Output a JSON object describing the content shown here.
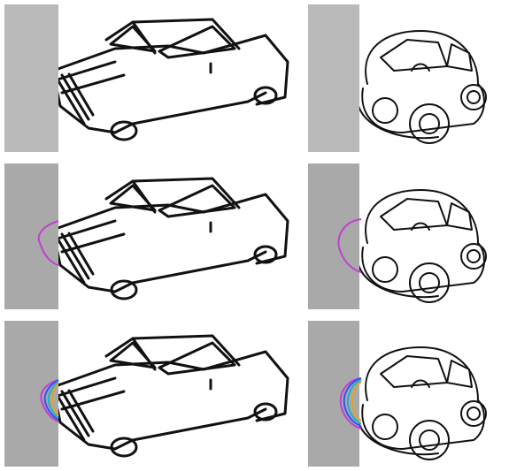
{
  "figure": {
    "rows": [
      {
        "row": "original",
        "left_car": "sedan",
        "right_car": "cartoon-beetle",
        "mask_color": "#b9b9b9",
        "completion_curves": []
      },
      {
        "row": "single-completion",
        "left_car": "sedan",
        "right_car": "cartoon-beetle",
        "mask_color": "#a9a9a9",
        "completion_curves": [
          "#c040d0"
        ]
      },
      {
        "row": "multiple-completions",
        "left_car": "sedan",
        "right_car": "cartoon-beetle",
        "mask_color": "#a9a9a9",
        "completion_curves": [
          "#c040d0",
          "#3050ff",
          "#20b0c0",
          "#e0a030"
        ]
      }
    ]
  }
}
